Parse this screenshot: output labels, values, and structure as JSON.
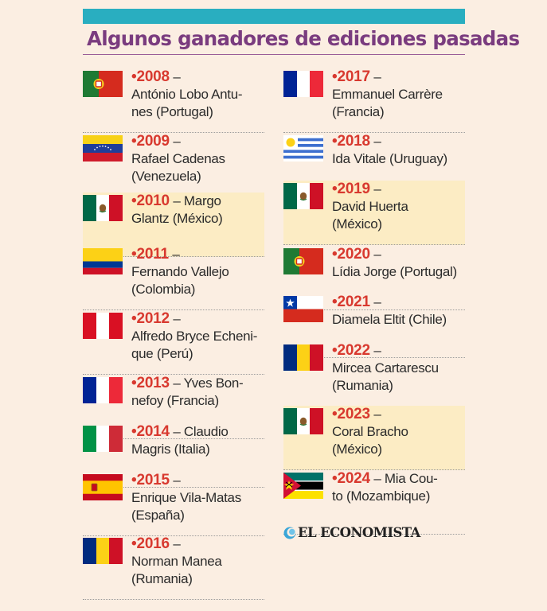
{
  "title": "Algunos ganadores de ediciones pasadas",
  "logo": "EL ECONOMISTA",
  "left": [
    {
      "year": "2008",
      "l1": "António Lobo Antu-",
      "l2": "nes (Portugal)",
      "flag": "portugal"
    },
    {
      "year": "2009",
      "l1": "Rafael Cadenas",
      "l2": "(Venezuela)",
      "flag": "venezuela"
    },
    {
      "year": "2010",
      "l0": "– Margo",
      "l2": "Glantz (México)",
      "flag": "mexico"
    },
    {
      "year": "2011",
      "l1": "Fernando Vallejo",
      "l2": "(Colombia)",
      "flag": "colombia"
    },
    {
      "year": "2012",
      "l1": "Alfredo Bryce Echeni-",
      "l2": "que (Perú)",
      "flag": "peru"
    },
    {
      "year": "2013",
      "l0": "– Yves Bon-",
      "l2": "nefoy (Francia)",
      "flag": "france"
    },
    {
      "year": "2014",
      "l0": "– Claudio",
      "l2": "Magris (Italia)",
      "flag": "italy"
    },
    {
      "year": "2015",
      "l1": "Enrique Vila-Matas",
      "l2": "(España)",
      "flag": "spain"
    },
    {
      "year": "2016",
      "l1": "Norman Manea",
      "l2": "(Rumania)",
      "flag": "romania"
    }
  ],
  "right": [
    {
      "year": "2017",
      "l1": "Emmanuel Carrère",
      "l2": "(Francia)",
      "flag": "france"
    },
    {
      "year": "2018",
      "l1": "Ida Vitale (Uruguay)",
      "flag": "uruguay"
    },
    {
      "year": "2019",
      "l1": "David Huerta",
      "l2": "(México)",
      "flag": "mexico"
    },
    {
      "year": "2020",
      "l1": "Lídia Jorge (Portugal)",
      "flag": "portugal"
    },
    {
      "year": "2021",
      "l1": "Diamela Eltit (Chile)",
      "flag": "chile"
    },
    {
      "year": "2022",
      "l1": "Mircea Cartarescu",
      "l2": "(Rumania)",
      "flag": "romania"
    },
    {
      "year": "2023",
      "l1": "Coral Bracho",
      "l2": "(México)",
      "flag": "mexico"
    },
    {
      "year": "2024",
      "l0": "– Mia Cou-",
      "l2": "to (Mozambique)",
      "flag": "mozambique"
    }
  ],
  "colors": {
    "year": "#d8392f",
    "title": "#7a3c7f",
    "bar": "#29aec0",
    "highlight": "#fcecc4",
    "background": "#fbeee2"
  }
}
